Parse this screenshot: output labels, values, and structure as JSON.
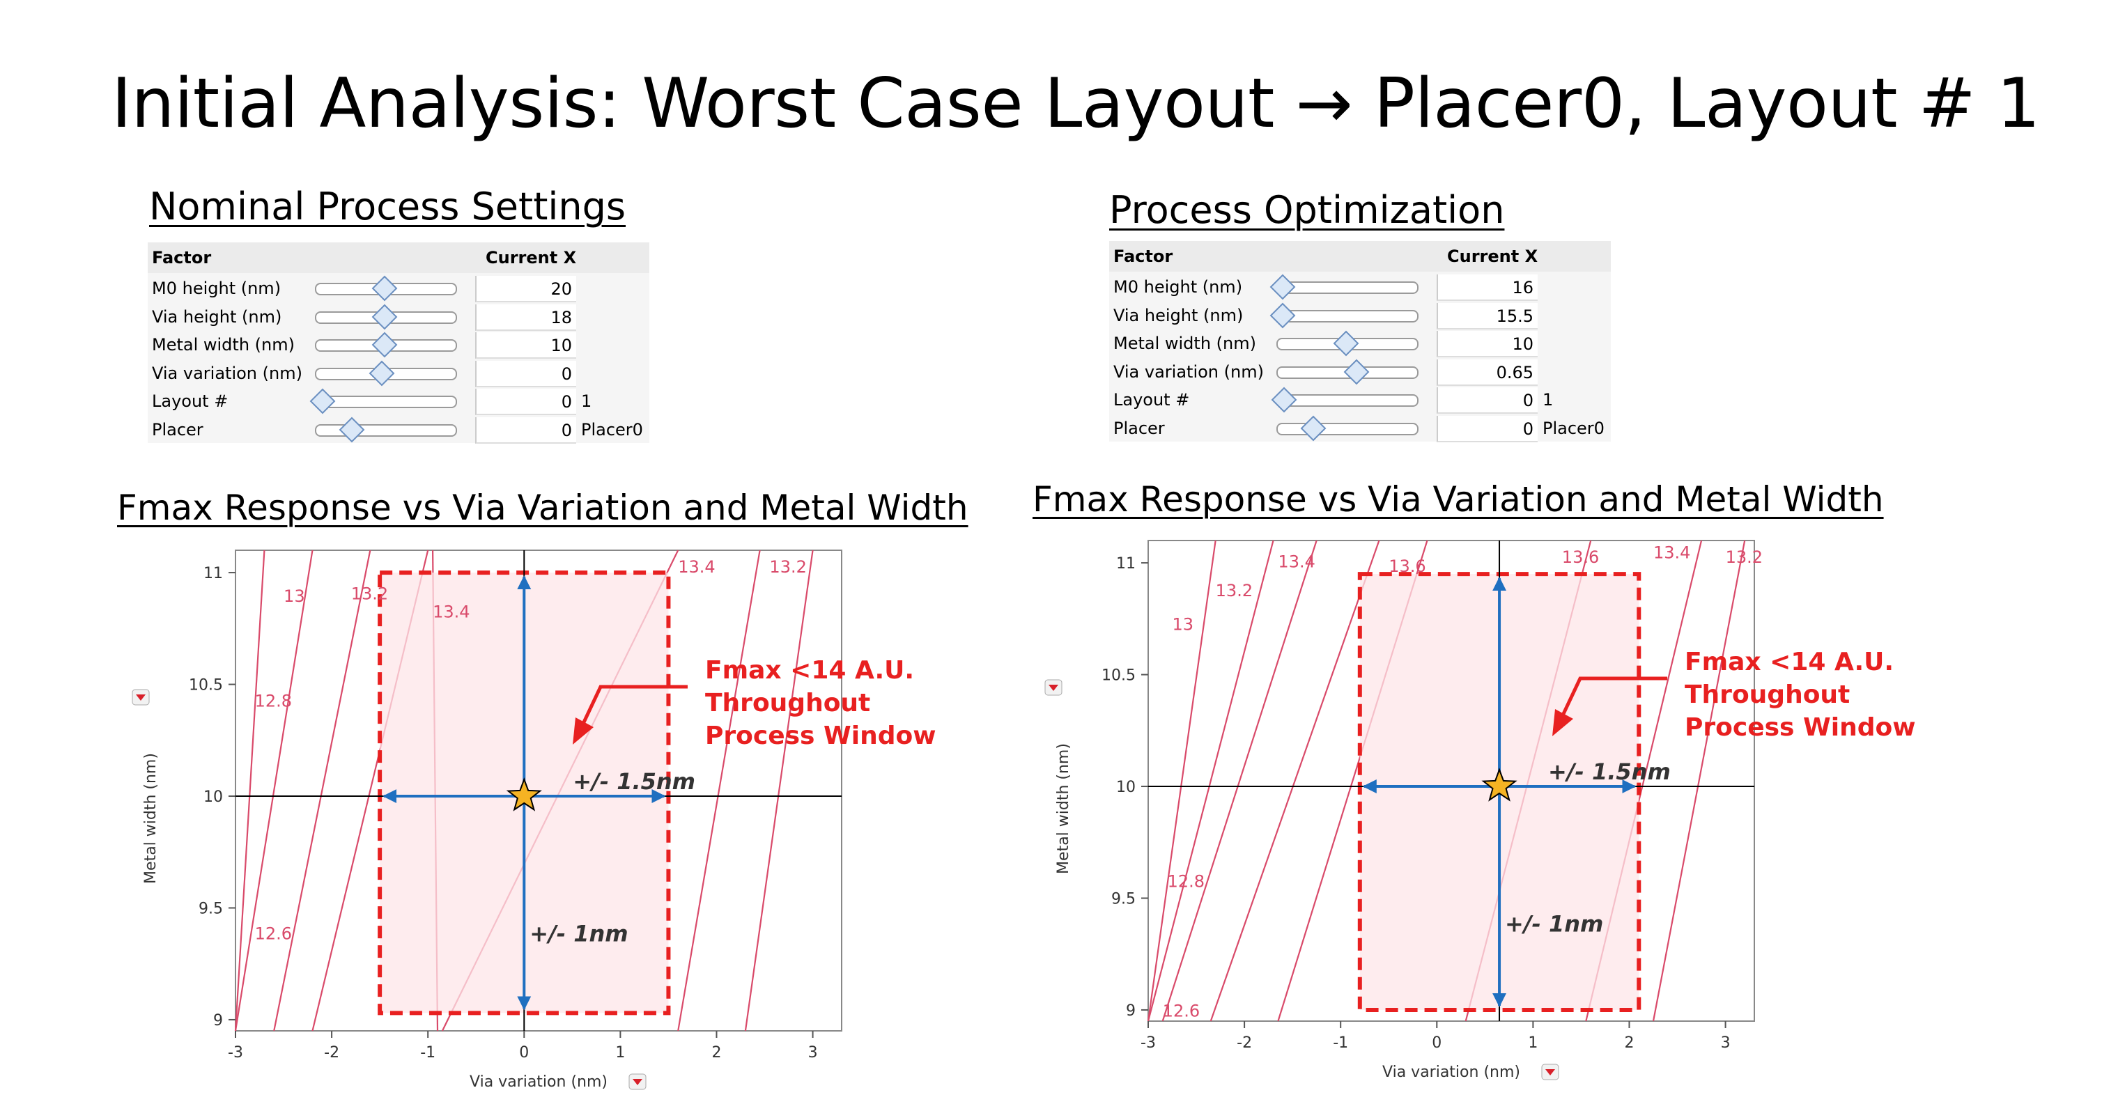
{
  "title": "Initial Analysis: Worst Case Layout → Placer0, Layout # 1",
  "left_panel": {
    "section_title": "Nominal Process Settings",
    "table": {
      "header_factor": "Factor",
      "header_current": "Current X",
      "rows": [
        {
          "label": "M0 height (nm)",
          "value": "20",
          "extra": "",
          "slider": 0.5
        },
        {
          "label": "Via height (nm)",
          "value": "18",
          "extra": "",
          "slider": 0.5
        },
        {
          "label": "Metal width (nm)",
          "value": "10",
          "extra": "",
          "slider": 0.5
        },
        {
          "label": "Via variation (nm)",
          "value": "0",
          "extra": "",
          "slider": 0.48
        },
        {
          "label": "Layout #",
          "value": "0",
          "extra": "1",
          "slider": 0.03
        },
        {
          "label": "Placer",
          "value": "0",
          "extra": "Placer0",
          "slider": 0.25
        }
      ]
    },
    "plot_title": "Fmax Response vs Via Variation and Metal Width"
  },
  "right_panel": {
    "section_title": "Process Optimization",
    "table": {
      "header_factor": "Factor",
      "header_current": "Current X",
      "rows": [
        {
          "label": "M0 height (nm)",
          "value": "16",
          "extra": "",
          "slider": 0.02
        },
        {
          "label": "Via height (nm)",
          "value": "15.5",
          "extra": "",
          "slider": 0.02
        },
        {
          "label": "Metal width (nm)",
          "value": "10",
          "extra": "",
          "slider": 0.5
        },
        {
          "label": "Via variation (nm)",
          "value": "0.65",
          "extra": "",
          "slider": 0.58
        },
        {
          "label": "Layout #",
          "value": "0",
          "extra": "1",
          "slider": 0.03
        },
        {
          "label": "Placer",
          "value": "0",
          "extra": "Placer0",
          "slider": 0.25
        }
      ]
    },
    "plot_title": "Fmax Response vs Via Variation and Metal Width"
  },
  "colors": {
    "contour": "#d94a6a",
    "window_fill": "#fde6e8",
    "window_border": "#e82020",
    "arrow": "#1f6fc0",
    "star": "#f5b323",
    "annotation": "#e82020"
  },
  "chart_data": [
    {
      "type": "contour",
      "xlabel": "Via variation (nm)",
      "ylabel": "Metal width (nm)",
      "xlim": [
        -3,
        3.3
      ],
      "ylim": [
        8.95,
        11.1
      ],
      "xticks": [
        -3,
        -2,
        -1,
        0,
        1,
        2,
        3
      ],
      "yticks": [
        9,
        9.5,
        10,
        10.5,
        11
      ],
      "current_point": {
        "x": 0,
        "y": 10
      },
      "window": {
        "x": [
          -1.5,
          1.5
        ],
        "y": [
          9.03,
          11.0
        ]
      },
      "arrow_labels": {
        "horizontal": "+/- 1.5nm",
        "vertical": "+/- 1nm"
      },
      "annotation": [
        "Fmax <14 A.U.",
        "Throughout",
        "Process Window"
      ],
      "contours": [
        {
          "level": "12.6",
          "top_x": -2.7,
          "bottom_x": -3.0
        },
        {
          "level": "12.8",
          "top_x": -2.2,
          "bottom_x": -3.0
        },
        {
          "level": "13",
          "top_x": -1.6,
          "bottom_x": -2.6
        },
        {
          "level": "13.2",
          "top_x": -1.0,
          "bottom_x": -2.2
        },
        {
          "level": "13.4",
          "top_x": -0.95,
          "bottom_x": -0.9
        },
        {
          "level": "13.4",
          "top_x": 1.6,
          "bottom_x": -0.85
        },
        {
          "level": "13.2",
          "top_x": 2.45,
          "bottom_x": 1.6
        },
        {
          "level": "",
          "top_x": 3.0,
          "bottom_x": 2.3
        }
      ],
      "contour_labels": [
        {
          "text": "13",
          "x": -2.5,
          "y": 10.87
        },
        {
          "text": "13.2",
          "x": -1.8,
          "y": 10.88
        },
        {
          "text": "13.4",
          "x": -0.95,
          "y": 10.8
        },
        {
          "text": "13.4",
          "x": 1.6,
          "y": 11.0
        },
        {
          "text": "13.2",
          "x": 2.55,
          "y": 11.0
        },
        {
          "text": "12.8",
          "x": -2.8,
          "y": 10.4
        },
        {
          "text": "12.6",
          "x": -2.8,
          "y": 9.36
        }
      ]
    },
    {
      "type": "contour",
      "xlabel": "Via variation (nm)",
      "ylabel": "Metal width (nm)",
      "xlim": [
        -3,
        3.3
      ],
      "ylim": [
        8.95,
        11.1
      ],
      "xticks": [
        -3,
        -2,
        -1,
        0,
        1,
        2,
        3
      ],
      "yticks": [
        9,
        9.5,
        10,
        10.5,
        11
      ],
      "current_point": {
        "x": 0.65,
        "y": 10
      },
      "window": {
        "x": [
          -0.8,
          2.1
        ],
        "y": [
          9.0,
          10.95
        ]
      },
      "arrow_labels": {
        "horizontal": "+/- 1.5nm",
        "vertical": "+/- 1nm"
      },
      "annotation": [
        "Fmax <14 A.U.",
        "Throughout",
        "Process Window"
      ],
      "contours": [
        {
          "level": "12.6",
          "top_x": -2.3,
          "bottom_x": -3.0
        },
        {
          "level": "12.8",
          "top_x": -1.7,
          "bottom_x": -3.0
        },
        {
          "level": "13",
          "top_x": -1.25,
          "bottom_x": -2.85
        },
        {
          "level": "13.2",
          "top_x": -0.6,
          "bottom_x": -2.35
        },
        {
          "level": "13.4",
          "top_x": -0.1,
          "bottom_x": -1.65
        },
        {
          "level": "13.6",
          "top_x": 1.6,
          "bottom_x": 0.3
        },
        {
          "level": "13.4",
          "top_x": 2.75,
          "bottom_x": 1.55
        },
        {
          "level": "13.2",
          "top_x": 3.2,
          "bottom_x": 2.25
        }
      ],
      "contour_labels": [
        {
          "text": "13",
          "x": -2.75,
          "y": 10.7
        },
        {
          "text": "13.2",
          "x": -2.3,
          "y": 10.85
        },
        {
          "text": "13.4",
          "x": -1.65,
          "y": 10.98
        },
        {
          "text": "13.6",
          "x": -0.5,
          "y": 10.96
        },
        {
          "text": "13.6",
          "x": 1.3,
          "y": 11.0
        },
        {
          "text": "13.4",
          "x": 2.25,
          "y": 11.02
        },
        {
          "text": "13.2",
          "x": 3.0,
          "y": 11.0
        },
        {
          "text": "12.8",
          "x": -2.8,
          "y": 9.55
        },
        {
          "text": "12.6",
          "x": -2.85,
          "y": 8.97
        }
      ]
    }
  ]
}
